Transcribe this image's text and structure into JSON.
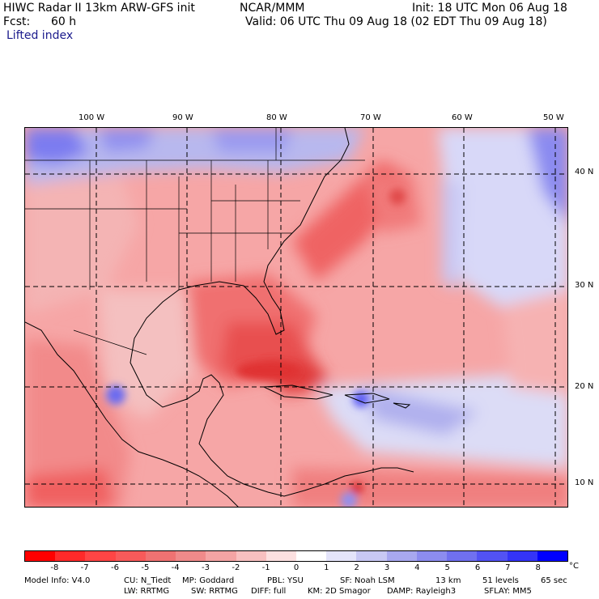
{
  "header": {
    "title": "HIWC Radar II 13km ARW-GFS init",
    "org": "NCAR/MMM",
    "init": "Init: 18 UTC Mon 06 Aug 18",
    "fcst_label": "Fcst:",
    "fcst_value": "60 h",
    "valid": "Valid: 06 UTC Thu 09 Aug 18 (02 EDT Thu 09 Aug 18)",
    "field": "Lifted index"
  },
  "map": {
    "longitude_labels": [
      "100 W",
      "90 W",
      "80 W",
      "70 W",
      "60 W",
      "50 W"
    ],
    "latitude_labels": [
      "40 N",
      "30 N",
      "20 N",
      "10 N"
    ],
    "grid_style": "dashed"
  },
  "colorbar": {
    "tick_labels": [
      "-8",
      "-7",
      "-6",
      "-5",
      "-4",
      "-3",
      "-2",
      "-1",
      "0",
      "1",
      "2",
      "3",
      "4",
      "5",
      "6",
      "7",
      "8"
    ],
    "unit": "°C",
    "colors": [
      "#ff0000",
      "#ff2a2a",
      "#ff4545",
      "#f85a5a",
      "#f07272",
      "#f08a8a",
      "#f4a4a4",
      "#f8c0c0",
      "#fce0e0",
      "#ffffff",
      "#e4e4fa",
      "#c8c8f4",
      "#a8a8f0",
      "#8c8cf0",
      "#7070f0",
      "#5252f4",
      "#3434f8",
      "#0000ff"
    ]
  },
  "footer": {
    "line1": [
      "Model Info: V4.0",
      "CU: N_Tiedt",
      "MP: Goddard",
      "PBL: YSU",
      "SF: Noah LSM",
      "13 km",
      "51 levels",
      "65 sec"
    ],
    "line2": [
      "LW: RRTMG",
      "SW: RRTMG",
      "DIFF: full",
      "KM: 2D Smagor",
      "DAMP: Rayleigh3",
      "SFLAY: MM5"
    ]
  }
}
